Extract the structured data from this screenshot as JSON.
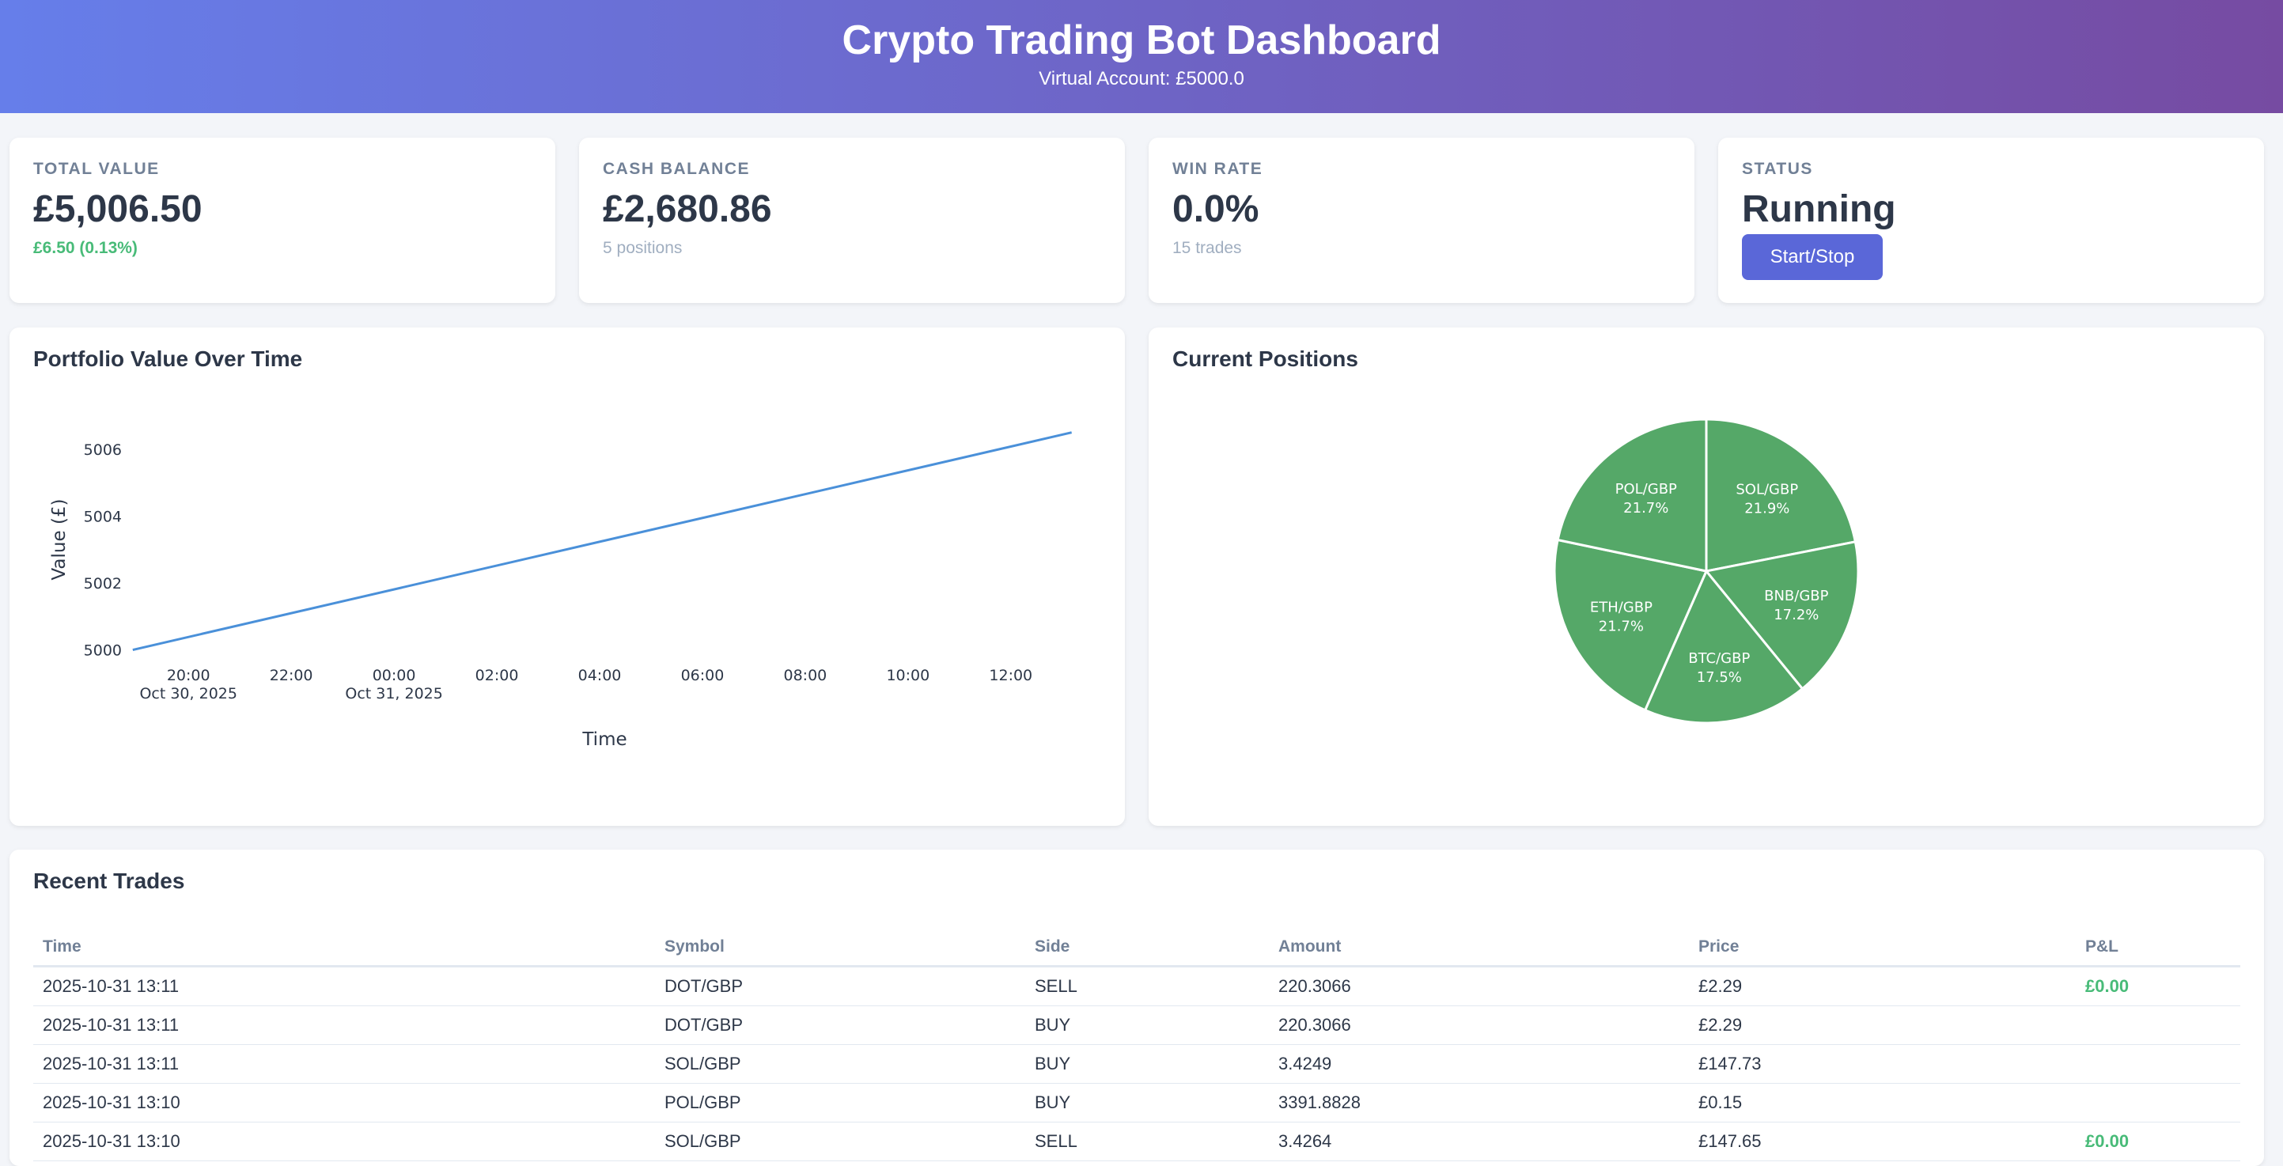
{
  "header": {
    "title": "Crypto Trading Bot Dashboard",
    "subtitle": "Virtual Account: £5000.0"
  },
  "stats": {
    "total_value": {
      "label": "TOTAL VALUE",
      "value": "£5,006.50",
      "sub": "£6.50 (0.13%)"
    },
    "cash_balance": {
      "label": "CASH BALANCE",
      "value": "£2,680.86",
      "sub": "5 positions"
    },
    "win_rate": {
      "label": "WIN RATE",
      "value": "0.0%",
      "sub": "15 trades"
    },
    "status": {
      "label": "STATUS",
      "value": "Running",
      "button_label": "Start/Stop"
    }
  },
  "colors": {
    "header_start": "#667eea",
    "header_end": "#764ba2",
    "accent": "#5a67d8",
    "positive": "#48bb78",
    "line": "#4a90d9",
    "pie": "#55a868"
  },
  "portfolio_chart": {
    "title": "Portfolio Value Over Time",
    "xlabel": "Time",
    "ylabel": "Value (£)",
    "x_ticks": [
      {
        "hour": 20,
        "label": "20:00",
        "sub": "Oct 30, 2025"
      },
      {
        "hour": 22,
        "label": "22:00",
        "sub": ""
      },
      {
        "hour": 24,
        "label": "00:00",
        "sub": "Oct 31, 2025"
      },
      {
        "hour": 26,
        "label": "02:00",
        "sub": ""
      },
      {
        "hour": 28,
        "label": "04:00",
        "sub": ""
      },
      {
        "hour": 30,
        "label": "06:00",
        "sub": ""
      },
      {
        "hour": 32,
        "label": "08:00",
        "sub": ""
      },
      {
        "hour": 34,
        "label": "10:00",
        "sub": ""
      },
      {
        "hour": 36,
        "label": "12:00",
        "sub": ""
      }
    ],
    "y_ticks": [
      5000,
      5002,
      5004,
      5006
    ]
  },
  "positions_chart": {
    "title": "Current Positions"
  },
  "chart_data": [
    {
      "type": "line",
      "title": "Portfolio Value Over Time",
      "xlabel": "Time",
      "ylabel": "Value (£)",
      "x": [
        "2025-10-30 18:55",
        "2025-10-31 13:11"
      ],
      "series": [
        {
          "values": [
            5000.0,
            5006.5
          ]
        }
      ],
      "ylim": [
        4999.8,
        5006.8
      ],
      "grid": false
    },
    {
      "type": "pie",
      "title": "Current Positions",
      "categories": [
        "SOL/GBP",
        "BNB/GBP",
        "BTC/GBP",
        "ETH/GBP",
        "POL/GBP"
      ],
      "values": [
        21.9,
        17.2,
        17.5,
        21.7,
        21.7
      ],
      "labels": [
        "21.9%",
        "17.2%",
        "17.5%",
        "21.7%",
        "21.7%"
      ]
    }
  ],
  "trades": {
    "title": "Recent Trades",
    "columns": [
      "Time",
      "Symbol",
      "Side",
      "Amount",
      "Price",
      "P&L"
    ],
    "rows": [
      [
        "2025-10-31 13:11",
        "DOT/GBP",
        "SELL",
        "220.3066",
        "£2.29",
        "£0.00"
      ],
      [
        "2025-10-31 13:11",
        "DOT/GBP",
        "BUY",
        "220.3066",
        "£2.29",
        ""
      ],
      [
        "2025-10-31 13:11",
        "SOL/GBP",
        "BUY",
        "3.4249",
        "£147.73",
        ""
      ],
      [
        "2025-10-31 13:10",
        "POL/GBP",
        "BUY",
        "3391.8828",
        "£0.15",
        ""
      ],
      [
        "2025-10-31 13:10",
        "SOL/GBP",
        "SELL",
        "3.4264",
        "£147.65",
        "£0.00"
      ]
    ]
  }
}
